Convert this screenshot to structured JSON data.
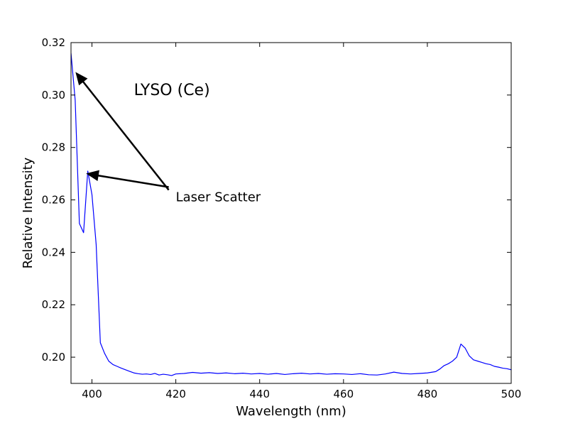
{
  "chart_data": {
    "type": "line",
    "xlabel": "Wavelength (nm)",
    "ylabel": "Relative Intensity",
    "xlim": [
      395,
      500
    ],
    "ylim": [
      0.19,
      0.32
    ],
    "xticks": [
      400,
      420,
      440,
      460,
      480,
      500
    ],
    "yticks": [
      0.2,
      0.22,
      0.24,
      0.26,
      0.28,
      0.3,
      0.32
    ],
    "xtick_labels": [
      "400",
      "420",
      "440",
      "460",
      "480",
      "500"
    ],
    "ytick_labels": [
      "0.20",
      "0.22",
      "0.24",
      "0.26",
      "0.28",
      "0.30",
      "0.32"
    ],
    "grid": false,
    "line_color": "#0000ff",
    "series": [
      {
        "x": [
          395,
          396,
          397,
          398,
          399,
          400,
          401,
          402,
          403,
          404,
          405,
          406,
          407,
          408,
          409,
          410,
          411,
          412,
          413,
          414,
          415,
          416,
          417,
          418,
          419,
          420,
          422,
          424,
          426,
          428,
          430,
          432,
          434,
          436,
          438,
          440,
          442,
          444,
          446,
          448,
          450,
          452,
          454,
          456,
          458,
          460,
          462,
          464,
          466,
          468,
          470,
          472,
          474,
          476,
          478,
          480,
          482,
          483,
          484,
          485,
          486,
          487,
          488,
          489,
          490,
          491,
          492,
          493,
          494,
          495,
          496,
          497,
          498,
          499,
          500
        ],
        "y": [
          0.316,
          0.298,
          0.251,
          0.2475,
          0.271,
          0.262,
          0.243,
          0.2055,
          0.2015,
          0.1985,
          0.1972,
          0.1965,
          0.1958,
          0.1952,
          0.1946,
          0.194,
          0.1937,
          0.1935,
          0.1936,
          0.1934,
          0.1938,
          0.1932,
          0.1935,
          0.1933,
          0.193,
          0.1936,
          0.1938,
          0.1942,
          0.1939,
          0.1941,
          0.1938,
          0.194,
          0.1937,
          0.1939,
          0.1936,
          0.1938,
          0.1935,
          0.1938,
          0.1934,
          0.1937,
          0.1939,
          0.1936,
          0.1938,
          0.1935,
          0.1937,
          0.1936,
          0.1934,
          0.1937,
          0.1933,
          0.1932,
          0.1936,
          0.1943,
          0.1938,
          0.1936,
          0.1938,
          0.194,
          0.1945,
          0.1955,
          0.1968,
          0.1975,
          0.1985,
          0.2,
          0.205,
          0.2035,
          0.2005,
          0.199,
          0.1985,
          0.198,
          0.1975,
          0.1972,
          0.1965,
          0.1962,
          0.1958,
          0.1956,
          0.1952
        ]
      }
    ],
    "annotations": [
      {
        "kind": "text",
        "text": "LYSO (Ce)",
        "x": 410,
        "y": 0.3
      },
      {
        "kind": "arrow",
        "text": "Laser Scatter",
        "text_x": 420,
        "text_y": 0.26,
        "targets": [
          [
            396.2,
            0.3085
          ],
          [
            398.8,
            0.27
          ]
        ]
      }
    ]
  }
}
